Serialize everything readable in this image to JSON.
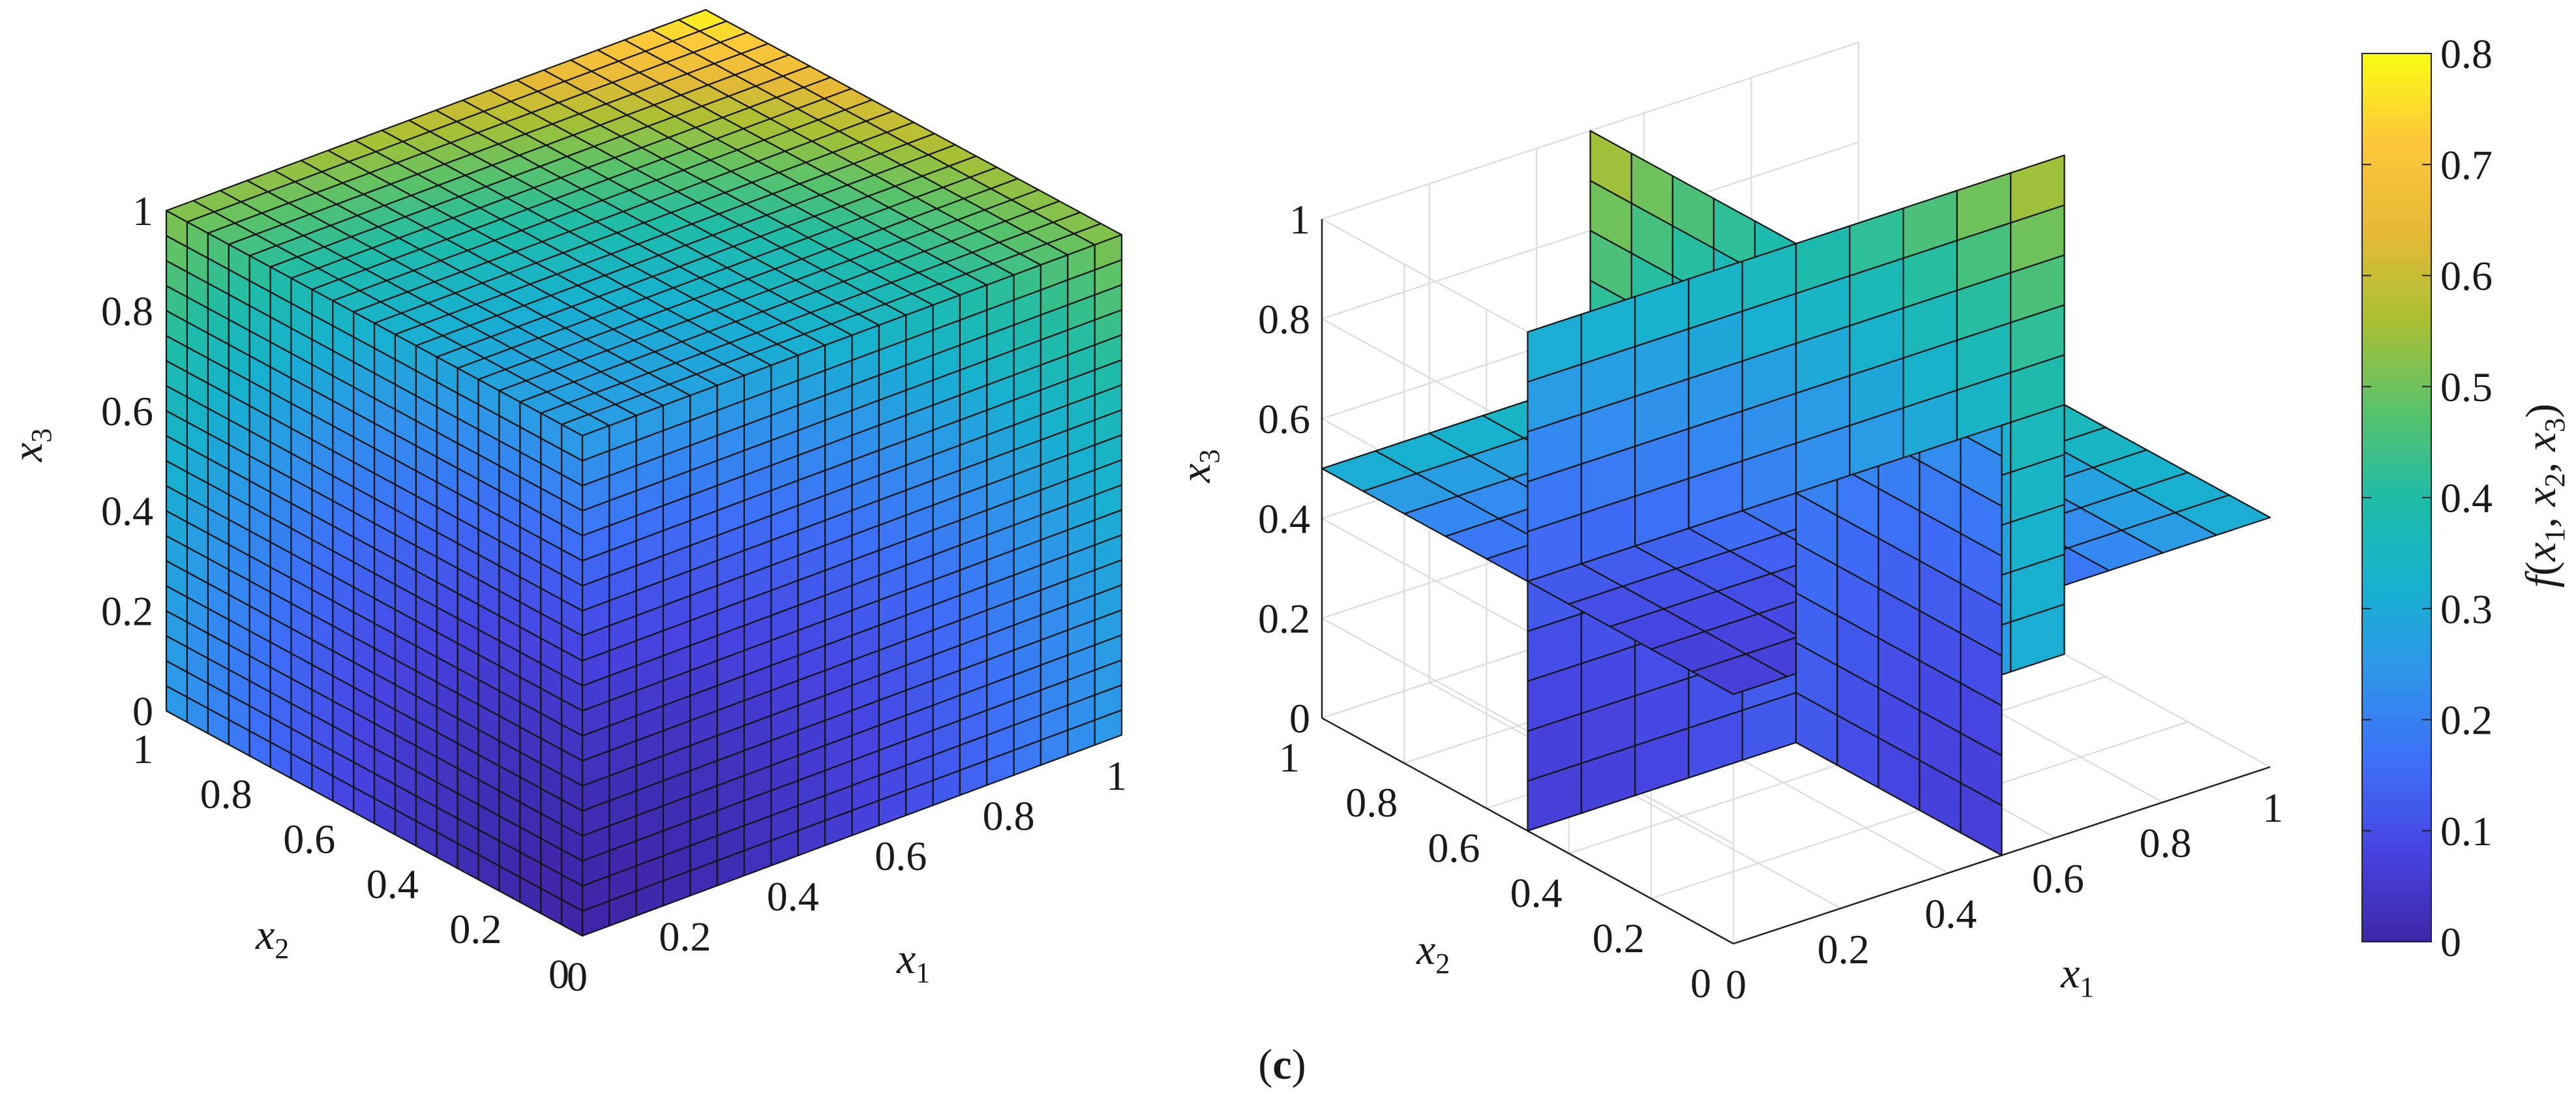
{
  "chart_data": [
    {
      "type": "3d-surface",
      "panel": "left",
      "description_mode": "cube surface coloured by f",
      "x_axis": {
        "label": "x",
        "subscript": "1",
        "ticks": [
          "0",
          "0.2",
          "0.4",
          "0.6",
          "0.8",
          "1"
        ],
        "range": [
          0,
          1
        ]
      },
      "y_axis": {
        "label": "x",
        "subscript": "2",
        "ticks": [
          "0",
          "0.2",
          "0.4",
          "0.6",
          "0.8",
          "1"
        ],
        "range": [
          0,
          1
        ]
      },
      "z_axis": {
        "label": "x",
        "subscript": "3",
        "ticks": [
          "0",
          "0.2",
          "0.4",
          "0.6",
          "0.8",
          "1"
        ],
        "range": [
          0,
          1
        ]
      },
      "grid_cells_per_edge": 20,
      "visible_faces": [
        "x1=0",
        "x2=0",
        "x3=1"
      ],
      "min_value_corner": [
        0,
        0,
        0
      ],
      "min_value": 0.0,
      "max_value": 0.8
    },
    {
      "type": "3d-slice",
      "panel": "right",
      "slices": {
        "x1": 0.5,
        "x2": 0.5,
        "x3": 0.5
      },
      "x_axis": {
        "label": "x",
        "subscript": "1",
        "ticks": [
          "0",
          "0.2",
          "0.4",
          "0.6",
          "0.8",
          "1"
        ],
        "range": [
          0,
          1
        ]
      },
      "y_axis": {
        "label": "x",
        "subscript": "2",
        "ticks": [
          "0",
          "0.2",
          "0.4",
          "0.6",
          "0.8",
          "1"
        ],
        "range": [
          0,
          1
        ]
      },
      "z_axis": {
        "label": "x",
        "subscript": "3",
        "ticks": [
          "0",
          "0.2",
          "0.4",
          "0.6",
          "0.8",
          "1"
        ],
        "range": [
          0,
          1
        ]
      },
      "grid_cells_per_edge": 10,
      "grid": true
    }
  ],
  "colorbar": {
    "label": "f(x1, x2, x3)",
    "label_parts": {
      "f": "f",
      "open": "(",
      "x": "x",
      "s1": "1",
      "s2": "2",
      "s3": "3",
      "sep": ", ",
      "close": ")"
    },
    "ticks": [
      "0",
      "0.1",
      "0.2",
      "0.3",
      "0.4",
      "0.5",
      "0.6",
      "0.7",
      "0.8"
    ],
    "range": [
      0,
      0.8
    ],
    "colormap": "parula",
    "colors": [
      "#3e26a8",
      "#4743e0",
      "#3e6ef8",
      "#2f94eb",
      "#17b1cf",
      "#1fbca7",
      "#5bc269",
      "#aac032",
      "#e7b937",
      "#fcc73a",
      "#f9fb15"
    ]
  },
  "caption": {
    "open": "(",
    "letter": "c",
    "close": ")"
  }
}
